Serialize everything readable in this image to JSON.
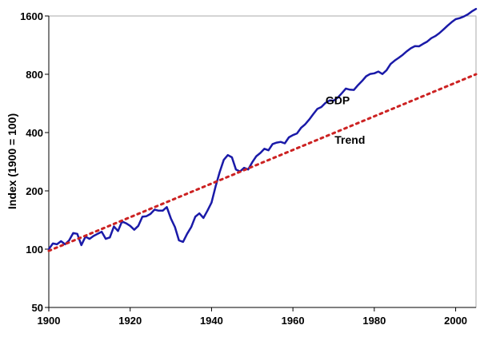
{
  "chart_data": {
    "type": "line",
    "title": "",
    "xlabel": "",
    "ylabel": "Index (1900 = 100)",
    "y_scale": "log",
    "xlim": [
      1900,
      2005
    ],
    "ylim": [
      50,
      1600
    ],
    "x_ticks": [
      1900,
      1920,
      1940,
      1960,
      1980,
      2000
    ],
    "x_tick_labels": [
      "1900",
      "1920",
      "1940",
      "1960",
      "1980",
      "2000"
    ],
    "y_ticks": [
      50,
      100,
      200,
      400,
      800,
      1600
    ],
    "y_tick_labels": [
      "50",
      "100",
      "200",
      "400",
      "800",
      "1600"
    ],
    "grid": false,
    "legend": "none",
    "series": [
      {
        "name": "GDP",
        "color": "#1a1aa8",
        "style": "solid",
        "x": [
          1900,
          1901,
          1902,
          1903,
          1904,
          1905,
          1906,
          1907,
          1908,
          1909,
          1910,
          1911,
          1912,
          1913,
          1914,
          1915,
          1916,
          1917,
          1918,
          1919,
          1920,
          1921,
          1922,
          1923,
          1924,
          1925,
          1926,
          1927,
          1928,
          1929,
          1930,
          1931,
          1932,
          1933,
          1934,
          1935,
          1936,
          1937,
          1938,
          1939,
          1940,
          1941,
          1942,
          1943,
          1944,
          1945,
          1946,
          1947,
          1948,
          1949,
          1950,
          1951,
          1952,
          1953,
          1954,
          1955,
          1956,
          1957,
          1958,
          1959,
          1960,
          1961,
          1962,
          1963,
          1964,
          1965,
          1966,
          1967,
          1968,
          1969,
          1970,
          1971,
          1972,
          1973,
          1974,
          1975,
          1976,
          1977,
          1978,
          1979,
          1980,
          1981,
          1982,
          1983,
          1984,
          1985,
          1986,
          1987,
          1988,
          1989,
          1990,
          1991,
          1992,
          1993,
          1994,
          1995,
          1996,
          1997,
          1998,
          1999,
          2000,
          2001,
          2002,
          2003,
          2004,
          2005
        ],
        "y": [
          100,
          107,
          106,
          110,
          106,
          111,
          121,
          120,
          105,
          116,
          113,
          117,
          120,
          123,
          113,
          115,
          131,
          124,
          139,
          136,
          132,
          126,
          132,
          147,
          148,
          152,
          160,
          158,
          158,
          165,
          144,
          130,
          111,
          109,
          120,
          130,
          147,
          153,
          145,
          158,
          174,
          211,
          250,
          289,
          306,
          298,
          258,
          252,
          263,
          258,
          281,
          302,
          314,
          330,
          324,
          349,
          355,
          358,
          352,
          378,
          388,
          396,
          423,
          441,
          467,
          498,
          530,
          542,
          569,
          586,
          585,
          605,
          638,
          675,
          666,
          664,
          703,
          739,
          781,
          803,
          809,
          826,
          802,
          838,
          903,
          941,
          973,
          1009,
          1052,
          1090,
          1117,
          1115,
          1149,
          1180,
          1229,
          1260,
          1304,
          1363,
          1425,
          1486,
          1540,
          1560,
          1590,
          1630,
          1690,
          1740
        ]
      },
      {
        "name": "Trend",
        "color": "#cc2222",
        "style": "dotted",
        "x": [
          1900,
          2005
        ],
        "y": [
          98,
          800
        ]
      }
    ],
    "annotations": [
      {
        "text": "GDP",
        "x": 1971,
        "y": 560
      },
      {
        "text": "Trend",
        "x": 1974,
        "y": 350
      }
    ]
  }
}
